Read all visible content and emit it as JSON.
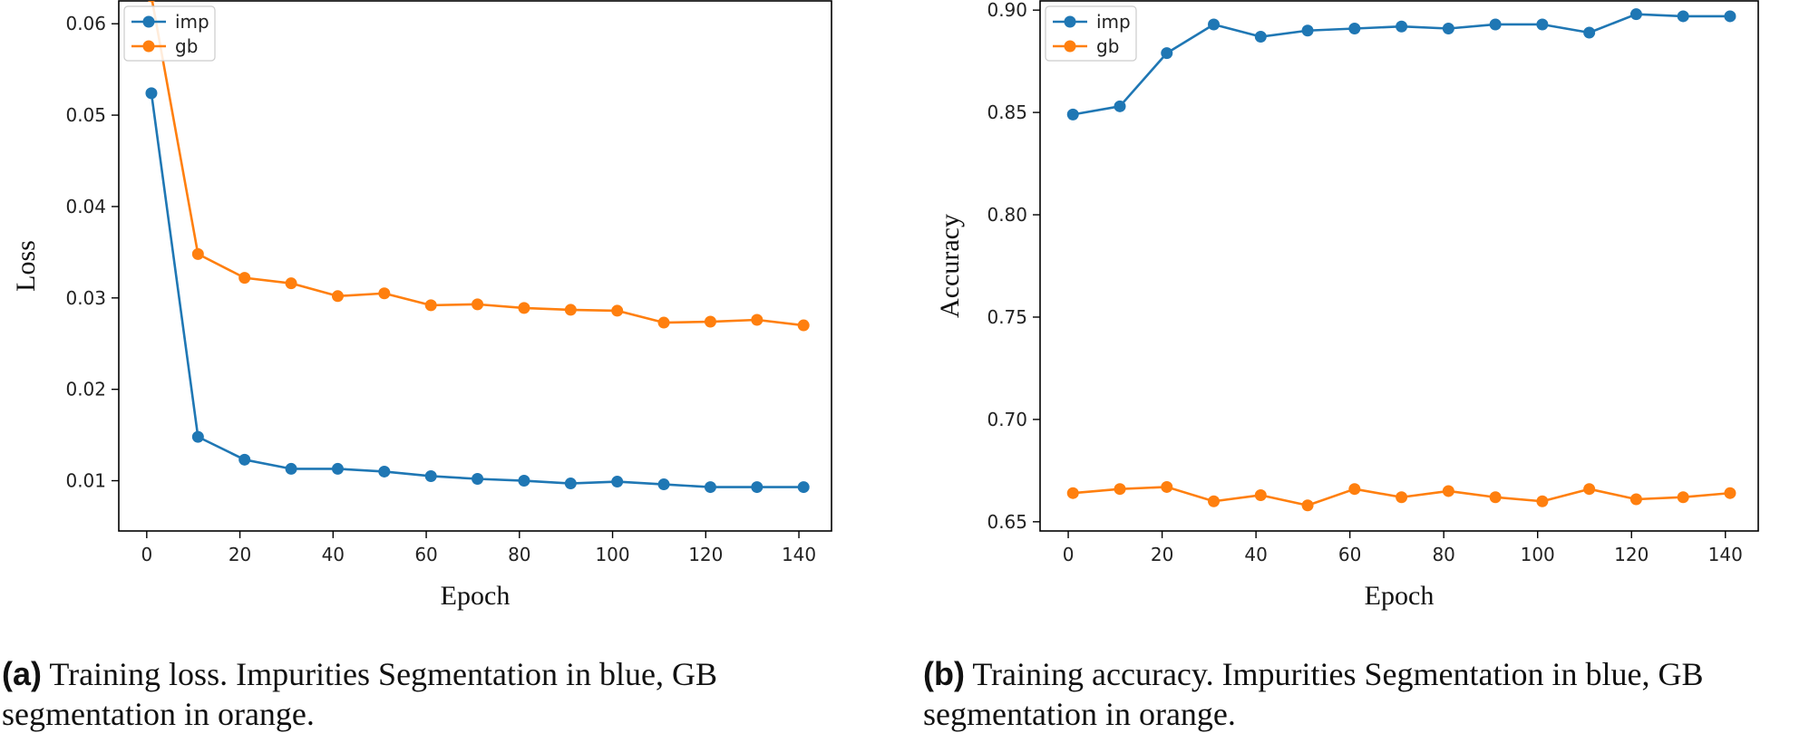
{
  "chart_data": [
    {
      "type": "line",
      "xlabel": "Epoch",
      "ylabel": "Loss",
      "xlim": [
        -6,
        147
      ],
      "ylim": [
        0.0045,
        0.0625
      ],
      "xticks": [
        0,
        20,
        40,
        60,
        80,
        100,
        120,
        140
      ],
      "yticks": [
        0.01,
        0.02,
        0.03,
        0.04,
        0.05,
        0.06
      ],
      "ytick_labels": [
        "0.01",
        "0.02",
        "0.03",
        "0.04",
        "0.05",
        "0.06"
      ],
      "legend_position": "top-left",
      "x": [
        1,
        11,
        21,
        31,
        41,
        51,
        61,
        71,
        81,
        91,
        101,
        111,
        121,
        131,
        141
      ],
      "series": [
        {
          "name": "imp",
          "color": "#1f77b4",
          "values": [
            0.0524,
            0.0148,
            0.0123,
            0.0113,
            0.0113,
            0.011,
            0.0105,
            0.0102,
            0.01,
            0.0097,
            0.0099,
            0.0096,
            0.0093,
            0.0093,
            0.0093
          ]
        },
        {
          "name": "gb",
          "color": "#ff7f0e",
          "values": [
            0.063,
            0.0348,
            0.0322,
            0.0316,
            0.0302,
            0.0305,
            0.0292,
            0.0293,
            0.0289,
            0.0287,
            0.0286,
            0.0273,
            0.0274,
            0.0276,
            0.027
          ]
        }
      ]
    },
    {
      "type": "line",
      "xlabel": "Epoch",
      "ylabel": "Accuracy",
      "xlim": [
        -6,
        147
      ],
      "ylim": [
        0.6455,
        0.9045
      ],
      "xticks": [
        0,
        20,
        40,
        60,
        80,
        100,
        120,
        140
      ],
      "yticks": [
        0.65,
        0.7,
        0.75,
        0.8,
        0.85,
        0.9
      ],
      "ytick_labels": [
        "0.65",
        "0.70",
        "0.75",
        "0.80",
        "0.85",
        "0.90"
      ],
      "legend_position": "top-left",
      "x": [
        1,
        11,
        21,
        31,
        41,
        51,
        61,
        71,
        81,
        91,
        101,
        111,
        121,
        131,
        141
      ],
      "series": [
        {
          "name": "imp",
          "color": "#1f77b4",
          "values": [
            0.849,
            0.853,
            0.879,
            0.893,
            0.887,
            0.89,
            0.891,
            0.892,
            0.891,
            0.893,
            0.893,
            0.889,
            0.898,
            0.897,
            0.897
          ]
        },
        {
          "name": "gb",
          "color": "#ff7f0e",
          "values": [
            0.664,
            0.666,
            0.667,
            0.66,
            0.663,
            0.658,
            0.666,
            0.662,
            0.665,
            0.662,
            0.66,
            0.666,
            0.661,
            0.662,
            0.664
          ]
        }
      ]
    }
  ],
  "captions": [
    {
      "letter": "(a)",
      "text": "Training loss. Impurities Segmentation in blue, GB",
      "text2": "segmentation in orange."
    },
    {
      "letter": "(b)",
      "text": "Training accuracy. Impurities Segmentation in blue, GB",
      "text2": "segmentation in orange."
    }
  ]
}
